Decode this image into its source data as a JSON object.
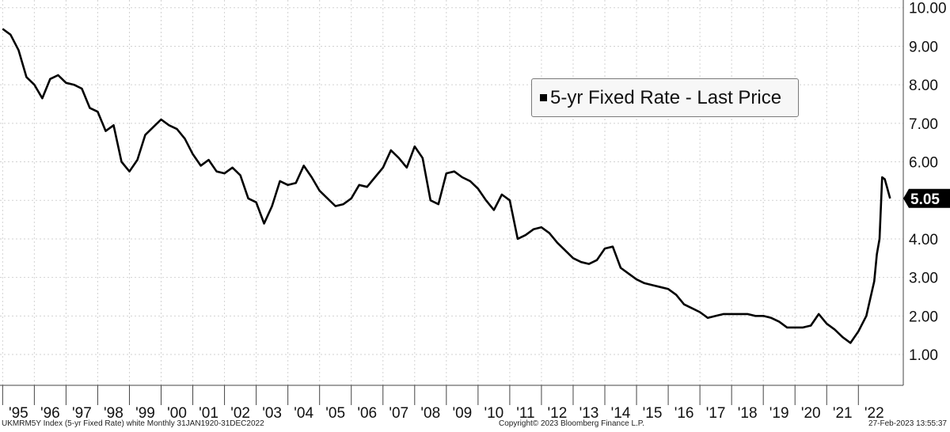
{
  "chart_data": {
    "type": "line",
    "title": "",
    "xlabel": "",
    "ylabel": "",
    "ylim": [
      0.2,
      10.2
    ],
    "xlim": [
      "1994-12",
      "2023-06"
    ],
    "y_ticks": [
      "1.00",
      "2.00",
      "3.00",
      "4.00",
      "5.00",
      "6.00",
      "7.00",
      "8.00",
      "9.00",
      "10.00"
    ],
    "x_ticks": [
      "'95",
      "'96",
      "'97",
      "'98",
      "'99",
      "'00",
      "'01",
      "'02",
      "'03",
      "'04",
      "'05",
      "'06",
      "'07",
      "'08",
      "'09",
      "'10",
      "'11",
      "'12",
      "'13",
      "'14",
      "'15",
      "'16",
      "'17",
      "'18",
      "'19",
      "'20",
      "'21",
      "'22"
    ],
    "grid": true,
    "legend_position": "top-right",
    "last_value_label": "5.05",
    "series": [
      {
        "name": "5-yr Fixed Rate - Last Price",
        "color": "#000000",
        "x": [
          "1995-01",
          "1995-04",
          "1995-07",
          "1995-10",
          "1996-01",
          "1996-04",
          "1996-07",
          "1996-10",
          "1997-01",
          "1997-04",
          "1997-07",
          "1997-10",
          "1998-01",
          "1998-04",
          "1998-07",
          "1998-10",
          "1999-01",
          "1999-04",
          "1999-07",
          "1999-10",
          "2000-01",
          "2000-04",
          "2000-07",
          "2000-10",
          "2001-01",
          "2001-04",
          "2001-07",
          "2001-10",
          "2002-01",
          "2002-04",
          "2002-07",
          "2002-10",
          "2003-01",
          "2003-04",
          "2003-07",
          "2003-10",
          "2004-01",
          "2004-04",
          "2004-07",
          "2004-10",
          "2005-01",
          "2005-04",
          "2005-07",
          "2005-10",
          "2006-01",
          "2006-04",
          "2006-07",
          "2006-10",
          "2007-01",
          "2007-04",
          "2007-07",
          "2007-10",
          "2008-01",
          "2008-04",
          "2008-07",
          "2008-10",
          "2009-01",
          "2009-04",
          "2009-07",
          "2009-10",
          "2010-01",
          "2010-04",
          "2010-07",
          "2010-10",
          "2011-01",
          "2011-04",
          "2011-07",
          "2011-10",
          "2012-01",
          "2012-04",
          "2012-07",
          "2012-10",
          "2013-01",
          "2013-04",
          "2013-07",
          "2013-10",
          "2014-01",
          "2014-04",
          "2014-07",
          "2014-10",
          "2015-01",
          "2015-04",
          "2015-07",
          "2015-10",
          "2016-01",
          "2016-04",
          "2016-07",
          "2016-10",
          "2017-01",
          "2017-04",
          "2017-07",
          "2017-10",
          "2018-01",
          "2018-04",
          "2018-07",
          "2018-10",
          "2019-01",
          "2019-04",
          "2019-07",
          "2019-10",
          "2020-01",
          "2020-04",
          "2020-07",
          "2020-10",
          "2021-01",
          "2021-04",
          "2021-07",
          "2021-10",
          "2022-01",
          "2022-04",
          "2022-07",
          "2022-08",
          "2022-09",
          "2022-10",
          "2022-11",
          "2022-12",
          "2023-01"
        ],
        "values": [
          9.45,
          9.3,
          8.9,
          8.2,
          8.0,
          7.65,
          8.15,
          8.25,
          8.05,
          8.0,
          7.9,
          7.4,
          7.3,
          6.8,
          6.95,
          6.0,
          5.75,
          6.05,
          6.7,
          6.9,
          7.1,
          6.95,
          6.85,
          6.6,
          6.2,
          5.9,
          6.05,
          5.75,
          5.7,
          5.85,
          5.65,
          5.05,
          4.95,
          4.4,
          4.85,
          5.5,
          5.4,
          5.45,
          5.9,
          5.6,
          5.25,
          5.05,
          4.85,
          4.9,
          5.05,
          5.4,
          5.35,
          5.6,
          5.85,
          6.3,
          6.1,
          5.85,
          6.4,
          6.1,
          5.0,
          4.9,
          5.7,
          5.75,
          5.6,
          5.5,
          5.3,
          5.0,
          4.75,
          5.15,
          5.0,
          4.0,
          4.1,
          4.25,
          4.3,
          4.15,
          3.9,
          3.7,
          3.5,
          3.4,
          3.35,
          3.45,
          3.75,
          3.8,
          3.25,
          3.1,
          2.95,
          2.85,
          2.8,
          2.75,
          2.7,
          2.55,
          2.3,
          2.2,
          2.1,
          1.95,
          2.0,
          2.05,
          2.05,
          2.05,
          2.05,
          2.0,
          2.0,
          1.95,
          1.85,
          1.7,
          1.7,
          1.7,
          1.75,
          2.05,
          1.8,
          1.65,
          1.45,
          1.3,
          1.6,
          2.0,
          2.9,
          3.6,
          4.0,
          5.6,
          5.55,
          5.3,
          5.05
        ]
      }
    ]
  },
  "footer": {
    "left": "UKMRM5Y Index (5-yr Fixed Rate) white  Monthly 31JAN1920-31DEC2022",
    "center": "Copyright© 2023 Bloomberg Finance L.P.",
    "right": "27-Feb-2023 13:55:37"
  }
}
